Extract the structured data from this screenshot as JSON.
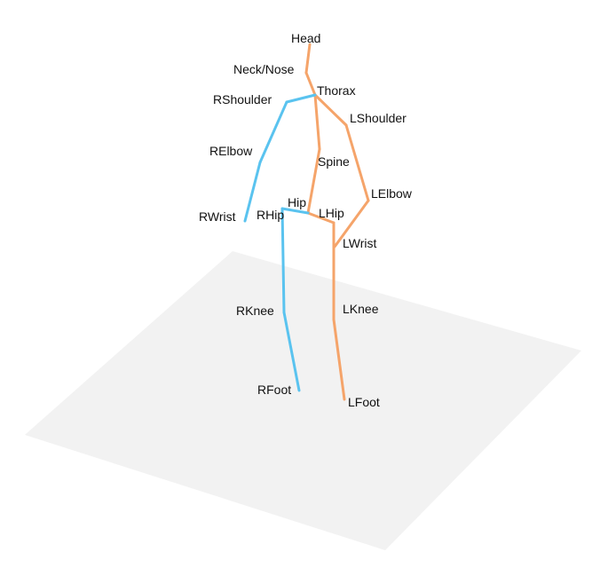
{
  "colors": {
    "background": "#ffffff",
    "floor": "#f2f2f2",
    "left_side": "#f5a46a",
    "right_side": "#5ac3ef",
    "label": "#111111"
  },
  "joints": {
    "head": "Head",
    "neck_nose": "Neck/Nose",
    "thorax": "Thorax",
    "spine": "Spine",
    "hip": "Hip",
    "rhip": "RHip",
    "lhip": "LHip",
    "rshoulder": "RShoulder",
    "relbow": "RElbow",
    "rwrist": "RWrist",
    "lshoulder": "LShoulder",
    "lelbow": "LElbow",
    "lwrist": "LWrist",
    "rknee": "RKnee",
    "rfoot": "RFoot",
    "lknee": "LKnee",
    "lfoot": "LFoot"
  }
}
